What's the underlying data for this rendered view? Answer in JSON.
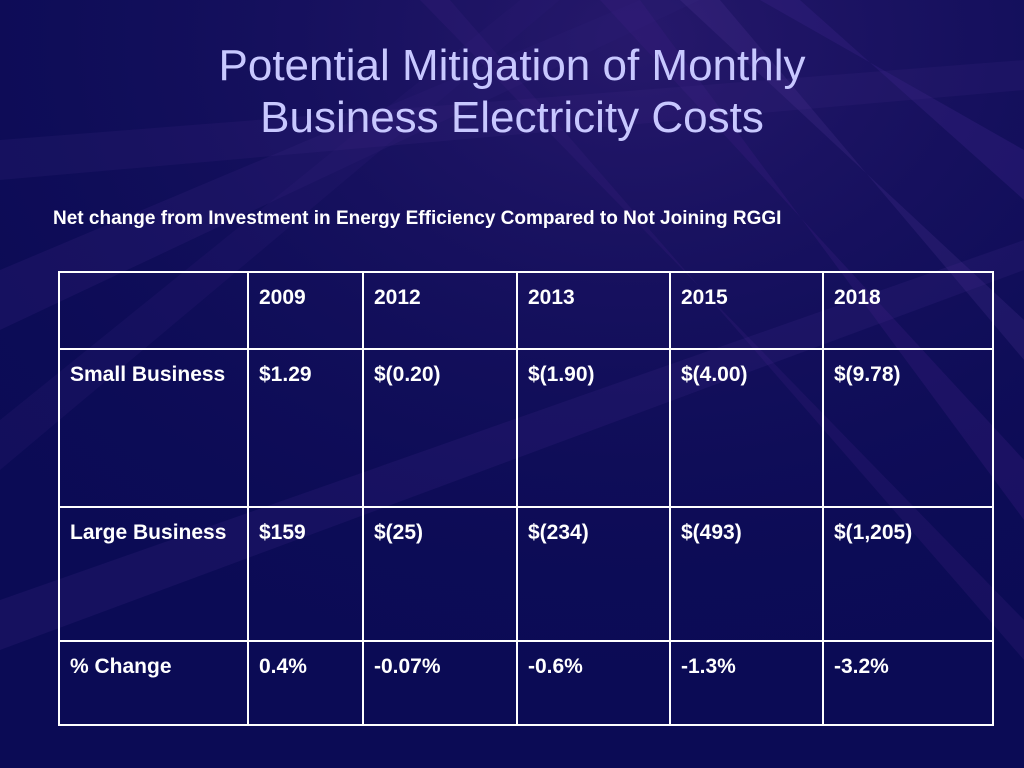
{
  "slide": {
    "title_line1": "Potential Mitigation of Monthly",
    "title_line2": "Business Electricity Costs",
    "subtitle": "Net change from Investment in Energy Efficiency Compared to Not Joining RGGI"
  },
  "colors": {
    "background": "#0b0b55",
    "title": "#c8c8ff",
    "text": "#ffffff",
    "table_border": "#ffffff"
  },
  "table": {
    "header": [
      "",
      "2009",
      "2012",
      "2013",
      "2015",
      "2018"
    ],
    "rows": [
      {
        "label": "Small Business",
        "cells": [
          "$1.29",
          "$(0.20)",
          "$(1.90)",
          "$(4.00)",
          "$(9.78)"
        ]
      },
      {
        "label": "Large Business",
        "cells": [
          "$159",
          "$(25)",
          "$(234)",
          "$(493)",
          "$(1,205)"
        ]
      },
      {
        "label": "% Change",
        "cells": [
          "0.4%",
          "-0.07%",
          "-0.6%",
          "-1.3%",
          "-3.2%"
        ]
      }
    ]
  }
}
